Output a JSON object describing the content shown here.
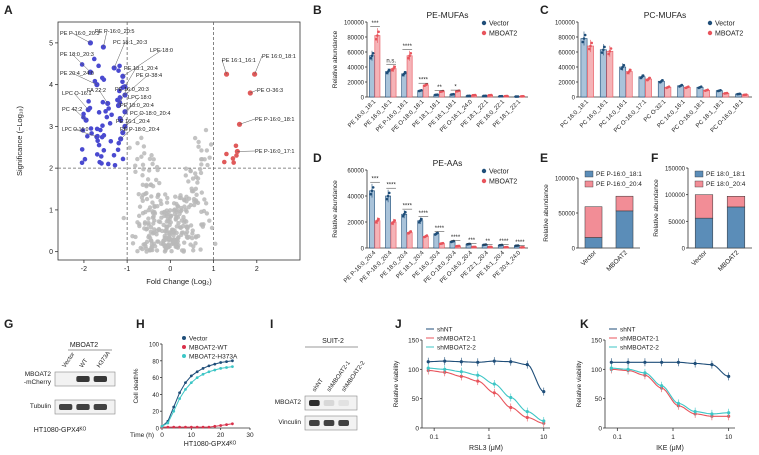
{
  "colors": {
    "vector": "#1f4e79",
    "mboat2": "#e8545c",
    "wt": "#d9304a",
    "h373a": "#3dc6c6",
    "grey": "#b8b8b8",
    "blue_pt": "#4a4ad0",
    "red_pt": "#e05a5a",
    "stack_blue": "#5b8db8",
    "stack_pink": "#f28d96"
  },
  "panels": {
    "A": "A",
    "B": "B",
    "C": "C",
    "D": "D",
    "E": "E",
    "F": "F",
    "G": "G",
    "H": "H",
    "I": "I",
    "J": "J",
    "K": "K"
  },
  "chart_data": [
    {
      "id": "A",
      "type": "scatter",
      "title": "",
      "xlabel": "Fold Change (Log₂)",
      "ylabel": "Significance (−Log₁₀)",
      "xlim": [
        -2.6,
        3.0
      ],
      "ylim": [
        -0.2,
        5.5
      ],
      "xticks": [
        "-2",
        "-1",
        "0",
        "1",
        "2"
      ],
      "yticks": [
        "0",
        "1",
        "2",
        "3",
        "4",
        "5"
      ],
      "thresholds": {
        "x": [
          -1,
          1
        ],
        "y": 2
      },
      "labels": [
        {
          "text": "PE P-16:0_20:3",
          "x": -1.85,
          "y": 5.0
        },
        {
          "text": "PE P-16:0_20:5",
          "x": -1.55,
          "y": 4.9
        },
        {
          "text": "PC 18:1_20:3",
          "x": -1.3,
          "y": 4.4
        },
        {
          "text": "PE 18:0_20:3",
          "x": -1.85,
          "y": 4.3
        },
        {
          "text": "LPE 18:0",
          "x": -1.1,
          "y": 4.2
        },
        {
          "text": "PE 18:1_20:4",
          "x": -1.05,
          "y": 3.95
        },
        {
          "text": "PE 20:4_24:0",
          "x": -1.7,
          "y": 4.0
        },
        {
          "text": "PE O-38:4",
          "x": -1.05,
          "y": 3.75
        },
        {
          "text": "FA 22:2",
          "x": -1.45,
          "y": 3.55
        },
        {
          "text": "PE 16:0_20:3",
          "x": -1.2,
          "y": 3.5
        },
        {
          "text": "LPC 18:0",
          "x": -1.05,
          "y": 3.35
        },
        {
          "text": "LPC O-16:1",
          "x": -1.9,
          "y": 3.4
        },
        {
          "text": "PE 18:0_20:4",
          "x": -1.15,
          "y": 3.15
        },
        {
          "text": "PC 42:2",
          "x": -1.95,
          "y": 3.15
        },
        {
          "text": "PC O-18:0_20:4",
          "x": -1.05,
          "y": 3.0
        },
        {
          "text": "PE 16:1_20:4",
          "x": -1.1,
          "y": 2.85
        },
        {
          "text": "PE P-18:0_20:4",
          "x": -1.15,
          "y": 2.7
        },
        {
          "text": "LPC O-16:0",
          "x": -1.7,
          "y": 2.75
        },
        {
          "text": "PE 16:1_16:1",
          "x": 1.3,
          "y": 4.25
        },
        {
          "text": "PE 16:0_18:1",
          "x": 1.95,
          "y": 4.25
        },
        {
          "text": "PE O-36:3",
          "x": 1.85,
          "y": 3.8
        },
        {
          "text": "PE P-16:0_18:1",
          "x": 1.6,
          "y": 3.05
        },
        {
          "text": "PE P-16:0_17:1",
          "x": 1.55,
          "y": 2.4
        }
      ]
    },
    {
      "id": "B",
      "type": "bar",
      "title": "PE-MUFAs",
      "ylabel": "Relative abundance",
      "yticks": [
        "0",
        "20000",
        "40000",
        "60000",
        "80000",
        "100000"
      ],
      "ylim": [
        0,
        100000
      ],
      "categories": [
        "PE 16:0_18:1",
        "PE 16:0_16:1",
        "PE P-16:0_18:1",
        "PE O-18:0_18:1",
        "PE 18:1_18:1",
        "PE 16:1_18:1",
        "PE O-16:1_24:0",
        "PE 18:1_22:1",
        "PE 16:0_22:1",
        "PE 18:1_22:1"
      ],
      "series": [
        {
          "name": "Vector",
          "values": [
            55000,
            34000,
            31000,
            8500,
            3000,
            3500,
            1500,
            1500,
            1000,
            600
          ]
        },
        {
          "name": "MBOAT2",
          "values": [
            82000,
            38000,
            55000,
            16000,
            7500,
            8000,
            2500,
            2500,
            1200,
            900
          ]
        }
      ],
      "significance": [
        "***",
        "n.s.",
        "****",
        "****",
        "**",
        "*",
        "",
        "",
        "",
        ""
      ]
    },
    {
      "id": "C",
      "type": "bar",
      "title": "PC-MUFAs",
      "ylabel": "",
      "yticks": [
        "0",
        "20000",
        "40000",
        "60000",
        "80000",
        "100000"
      ],
      "ylim": [
        0,
        100000
      ],
      "categories": [
        "PC 16:0_18:1",
        "PC 16:0_16:1",
        "PC 14:0_16:1",
        "PC O-16:0_17:1",
        "PC O-32:1",
        "PC 14:0_16:1",
        "PC O-16:0_18:1",
        "PC 18:1_18:1",
        "PC O-16:0_18:1"
      ],
      "series": [
        {
          "name": "Vector",
          "values": [
            78000,
            63000,
            40000,
            27000,
            21000,
            15000,
            13000,
            8500,
            4000
          ]
        },
        {
          "name": "MBOAT2",
          "values": [
            68000,
            61000,
            34000,
            24000,
            13000,
            13000,
            9000,
            5000,
            3000
          ]
        }
      ]
    },
    {
      "id": "D",
      "type": "bar",
      "title": "PE-AAs",
      "ylabel": "Relative abundance",
      "yticks": [
        "0",
        "20000",
        "40000",
        "60000"
      ],
      "ylim": [
        0,
        60000
      ],
      "categories": [
        "PE P-16:0_20:4",
        "PE P-18:0_20:4",
        "PE 18:0_20:4",
        "PE 18:1_20:4",
        "PE 16:0_20:4",
        "PE O-18:0_20:4",
        "PE O-16:0_20:4",
        "PE 22:1_20:4",
        "PE 16:1_20:4",
        "PE 20:4_24:0"
      ],
      "series": [
        {
          "name": "Vector",
          "values": [
            44000,
            40000,
            26000,
            21000,
            11000,
            5000,
            3000,
            2500,
            2200,
            1800
          ]
        },
        {
          "name": "MBOAT2",
          "values": [
            21000,
            20000,
            12000,
            9000,
            3500,
            1500,
            800,
            800,
            600,
            500
          ]
        }
      ],
      "significance": [
        "***",
        "****",
        "****",
        "****",
        "****",
        "****",
        "***",
        "**",
        "****",
        "****"
      ]
    },
    {
      "id": "E",
      "type": "bar",
      "stacked": true,
      "ylabel": "Relative abundance",
      "yticks": [
        "0",
        "50000",
        "100000"
      ],
      "ylim": [
        0,
        100000
      ],
      "categories": [
        "Vector",
        "MBOAT2"
      ],
      "series": [
        {
          "name": "PE P-16:0_18:1",
          "values": [
            15000,
            53000
          ]
        },
        {
          "name": "PE P-16:0_20:4",
          "values": [
            44000,
            21000
          ]
        }
      ]
    },
    {
      "id": "F",
      "type": "bar",
      "stacked": true,
      "ylabel": "Relative abundance",
      "yticks": [
        "0",
        "50000",
        "100000",
        "150000"
      ],
      "ylim": [
        0,
        150000
      ],
      "categories": [
        "Vector",
        "MBOAT2"
      ],
      "series": [
        {
          "name": "PE 18:0_18:1",
          "values": [
            56000,
            77000
          ]
        },
        {
          "name": "PE 18:0_20:4",
          "values": [
            44000,
            20000
          ]
        }
      ]
    },
    {
      "id": "H",
      "type": "line",
      "ylabel": "Cell death%",
      "xlabel": "Time (h)",
      "xticks": [
        "0",
        "10",
        "20",
        "30"
      ],
      "yticks": [
        "0",
        "20",
        "40",
        "60",
        "80",
        "100"
      ],
      "xlim": [
        0,
        30
      ],
      "ylim": [
        0,
        100
      ],
      "caption": "HT1080-GPX4ᴷᴼ",
      "x": [
        0,
        2,
        4,
        6,
        8,
        10,
        12,
        14,
        16,
        18,
        20,
        22,
        24
      ],
      "series": [
        {
          "name": "Vector",
          "values": [
            2,
            8,
            25,
            42,
            54,
            62,
            67,
            71,
            74,
            76,
            78,
            79,
            80
          ]
        },
        {
          "name": "MBOAT2-WT",
          "values": [
            1,
            1,
            1,
            1,
            1,
            1,
            1,
            1,
            1,
            2,
            3,
            4,
            5
          ]
        },
        {
          "name": "MBOAT2-H373A",
          "values": [
            2,
            6,
            20,
            35,
            46,
            54,
            60,
            64,
            67,
            69,
            71,
            72,
            73
          ]
        }
      ]
    },
    {
      "id": "J",
      "type": "line",
      "ylabel": "Relative viability",
      "xlabel": "RSL3 (μM)",
      "xscale": "log",
      "xlim": [
        0.06,
        13
      ],
      "ylim": [
        0,
        150
      ],
      "xticks": [
        "0.1",
        "1",
        "10"
      ],
      "yticks": [
        "0",
        "50",
        "100",
        "150"
      ],
      "x": [
        0.078,
        0.156,
        0.313,
        0.625,
        1.25,
        2.5,
        5,
        10
      ],
      "series": [
        {
          "name": "shNT",
          "values": [
            113,
            114,
            113,
            112,
            114,
            113,
            108,
            62
          ]
        },
        {
          "name": "shMBOAT2-1",
          "values": [
            98,
            95,
            88,
            80,
            60,
            35,
            18,
            8
          ]
        },
        {
          "name": "shMBOAT2-2",
          "values": [
            102,
            100,
            96,
            90,
            75,
            52,
            28,
            12
          ]
        }
      ]
    },
    {
      "id": "K",
      "type": "line",
      "ylabel": "Relative viability",
      "xlabel": "IKE (μM)",
      "xscale": "log",
      "xlim": [
        0.06,
        13
      ],
      "ylim": [
        0,
        150
      ],
      "xticks": [
        "0.1",
        "1",
        "10"
      ],
      "yticks": [
        "0",
        "50",
        "100",
        "150"
      ],
      "x": [
        0.078,
        0.156,
        0.313,
        0.625,
        1.25,
        2.5,
        5,
        10
      ],
      "series": [
        {
          "name": "shNT",
          "values": [
            112,
            112,
            112,
            112,
            112,
            110,
            108,
            88
          ]
        },
        {
          "name": "shMBOAT2-1",
          "values": [
            100,
            98,
            90,
            68,
            38,
            24,
            20,
            20
          ]
        },
        {
          "name": "shMBOAT2-2",
          "values": [
            102,
            100,
            94,
            72,
            42,
            28,
            24,
            26
          ]
        }
      ]
    }
  ],
  "blots": {
    "G": {
      "header": "MBOAT2",
      "lanes": [
        "Vector",
        "WT",
        "H373A"
      ],
      "rows": [
        "MBOAT2\n-mCherry",
        "Tubulin"
      ],
      "caption": "HT1080-GPX4ᴷᴼ"
    },
    "I": {
      "header": "SUIT-2",
      "lanes": [
        "shNT",
        "shMBOAT2-1",
        "shMBOAT2-2"
      ],
      "rows": [
        "MBOAT2",
        "Vinculin"
      ]
    }
  }
}
